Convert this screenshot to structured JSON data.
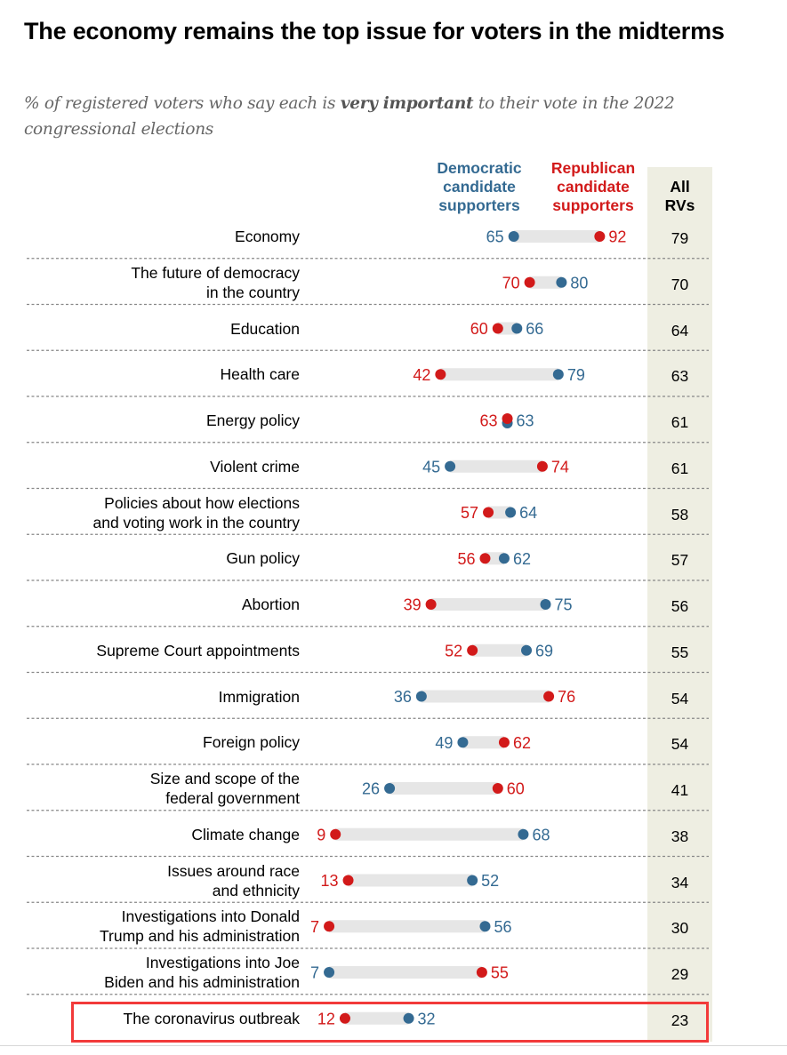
{
  "chart_data": {
    "type": "dumbbell",
    "title": "The economy remains the top issue for voters in the midterms",
    "subtitle_parts": [
      {
        "text": "% of registered voters who say each is ",
        "bold": false
      },
      {
        "text": "very important",
        "bold": true
      },
      {
        "text": " to their vote in the 2022 congressional elections",
        "bold": false
      }
    ],
    "series": [
      {
        "name": "Democratic candidate supporters",
        "color": "#346a92"
      },
      {
        "name": "Republican candidate supporters",
        "color": "#d21a1a"
      }
    ],
    "total_column_header": "All RVs",
    "xlim": [
      0,
      100
    ],
    "highlighted_category": "The coronavirus outbreak",
    "highlight_color": "#f23a3a",
    "total_column_color": "#eeeee2",
    "bar_color": "#e6e6e6",
    "rows": [
      {
        "category": "Economy",
        "label_lines": [
          "Economy"
        ],
        "dem": 65,
        "rep": 92,
        "all": 79
      },
      {
        "category": "The future of democracy in the country",
        "label_lines": [
          "The future of democracy",
          "in the country"
        ],
        "dem": 80,
        "rep": 70,
        "all": 70
      },
      {
        "category": "Education",
        "label_lines": [
          "Education"
        ],
        "dem": 66,
        "rep": 60,
        "all": 64
      },
      {
        "category": "Health care",
        "label_lines": [
          "Health care"
        ],
        "dem": 79,
        "rep": 42,
        "all": 63
      },
      {
        "category": "Energy policy",
        "label_lines": [
          "Energy policy"
        ],
        "dem": 63,
        "rep": 63,
        "all": 61
      },
      {
        "category": "Violent crime",
        "label_lines": [
          "Violent crime"
        ],
        "dem": 45,
        "rep": 74,
        "all": 61
      },
      {
        "category": "Policies about how elections and voting work in the country",
        "label_lines": [
          "Policies about how elections",
          "and voting work in the country"
        ],
        "dem": 64,
        "rep": 57,
        "all": 58
      },
      {
        "category": "Gun policy",
        "label_lines": [
          "Gun policy"
        ],
        "dem": 62,
        "rep": 56,
        "all": 57
      },
      {
        "category": "Abortion",
        "label_lines": [
          "Abortion"
        ],
        "dem": 75,
        "rep": 39,
        "all": 56
      },
      {
        "category": "Supreme Court appointments",
        "label_lines": [
          "Supreme Court appointments"
        ],
        "dem": 69,
        "rep": 52,
        "all": 55
      },
      {
        "category": "Immigration",
        "label_lines": [
          "Immigration"
        ],
        "dem": 36,
        "rep": 76,
        "all": 54
      },
      {
        "category": "Foreign policy",
        "label_lines": [
          "Foreign policy"
        ],
        "dem": 49,
        "rep": 62,
        "all": 54
      },
      {
        "category": "Size and scope of the federal government",
        "label_lines": [
          "Size and scope of the",
          "federal government"
        ],
        "dem": 26,
        "rep": 60,
        "all": 41
      },
      {
        "category": "Climate change",
        "label_lines": [
          "Climate change"
        ],
        "dem": 68,
        "rep": 9,
        "all": 38
      },
      {
        "category": "Issues around race and ethnicity",
        "label_lines": [
          "Issues around race",
          "and ethnicity"
        ],
        "dem": 52,
        "rep": 13,
        "all": 34
      },
      {
        "category": "Investigations into Donald Trump and his administration",
        "label_lines": [
          "Investigations into Donald",
          "Trump and his administration"
        ],
        "dem": 56,
        "rep": 7,
        "all": 30
      },
      {
        "category": "Investigations into Joe Biden and his administration",
        "label_lines": [
          "Investigations into Joe",
          "Biden and his administration"
        ],
        "dem": 7,
        "rep": 55,
        "all": 29
      },
      {
        "category": "The coronavirus outbreak",
        "label_lines": [
          "The coronavirus outbreak"
        ],
        "dem": 32,
        "rep": 12,
        "all": 23
      }
    ]
  },
  "headers": {
    "dem_lines": [
      "Democratic",
      "candidate",
      "supporters"
    ],
    "rep_lines": [
      "Republican",
      "candidate",
      "supporters"
    ],
    "all_lines": [
      "All",
      "RVs"
    ]
  }
}
